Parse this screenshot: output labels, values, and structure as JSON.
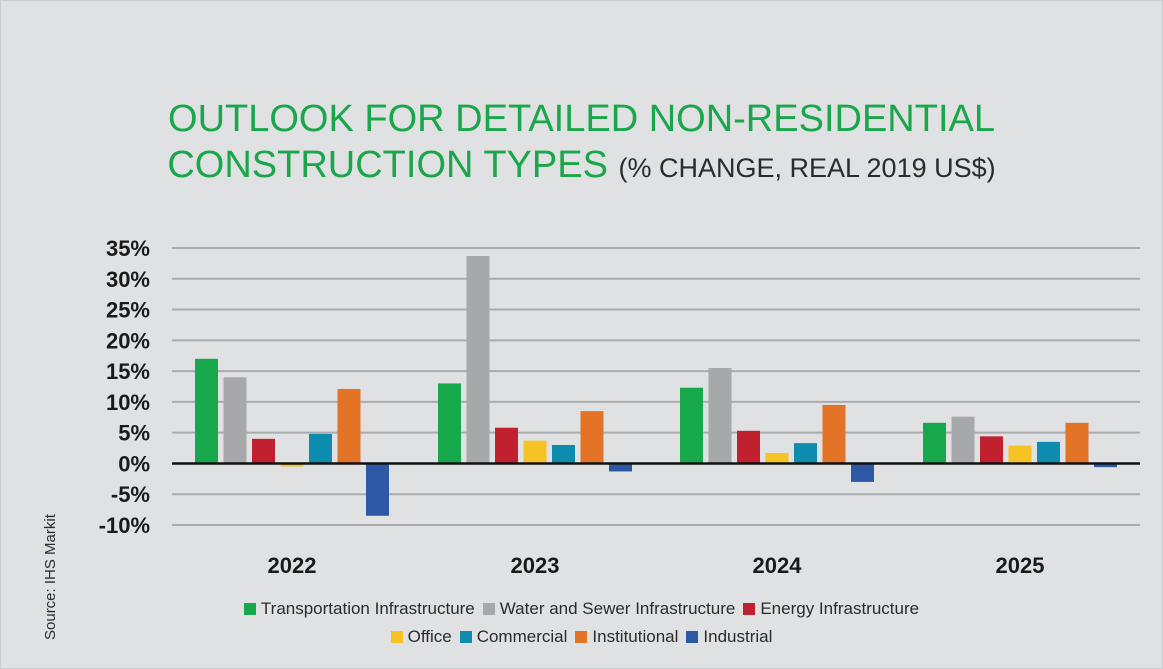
{
  "title": {
    "line1": "OUTLOOK FOR DETAILED NON-RESIDENTIAL",
    "line2": "CONSTRUCTION TYPES",
    "subtitle": "(% CHANGE, REAL 2019 US$)"
  },
  "source": "Source: IHS Markit",
  "chart_data": {
    "type": "bar",
    "title": "OUTLOOK FOR DETAILED NON-RESIDENTIAL CONSTRUCTION TYPES (% CHANGE, REAL 2019 US$)",
    "xlabel": "",
    "ylabel": "",
    "ylim": [
      -10,
      35
    ],
    "yticks": [
      "35%",
      "30%",
      "25%",
      "20%",
      "15%",
      "10%",
      "5%",
      "0%",
      "-5%",
      "-10%"
    ],
    "categories": [
      "2022",
      "2023",
      "2024",
      "2025"
    ],
    "grid": true,
    "legend_position": "bottom",
    "series": [
      {
        "name": "Transportation Infrastructure",
        "color": "#17a84b",
        "values": [
          17.0,
          13.0,
          12.3,
          6.6
        ]
      },
      {
        "name": "Water and Sewer Infrastructure",
        "color": "#a6a8aa",
        "values": [
          14.0,
          33.7,
          15.5,
          7.6
        ]
      },
      {
        "name": "Energy Infrastructure",
        "color": "#c1202e",
        "values": [
          4.0,
          5.8,
          5.3,
          4.4
        ]
      },
      {
        "name": "Office",
        "color": "#f6c224",
        "values": [
          -0.5,
          3.7,
          1.7,
          2.9
        ]
      },
      {
        "name": "Commercial",
        "color": "#0d8caf",
        "values": [
          4.8,
          3.0,
          3.3,
          3.5
        ]
      },
      {
        "name": "Institutional",
        "color": "#e37327",
        "values": [
          12.1,
          8.5,
          9.5,
          6.6
        ]
      },
      {
        "name": "Industrial",
        "color": "#2c58a5",
        "values": [
          -8.5,
          -1.3,
          -3.0,
          -0.6
        ]
      }
    ]
  }
}
